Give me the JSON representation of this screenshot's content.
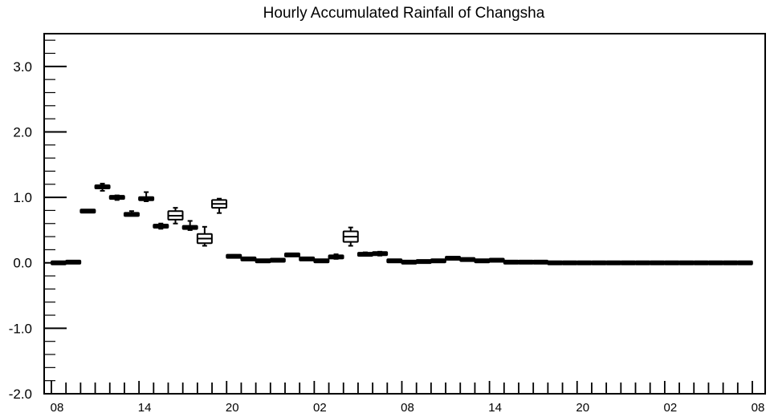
{
  "chart_data": {
    "type": "boxplot",
    "title": "Hourly Accumulated Rainfall of Changsha",
    "xlabel": "",
    "ylabel": "",
    "ylim": [
      -2.0,
      3.5
    ],
    "y_ticks": [
      "3.0",
      "2.0",
      "1.0",
      "0.0",
      "-1.0",
      "-2.0"
    ],
    "y_tick_values": [
      3.0,
      2.0,
      1.0,
      0.0,
      -1.0,
      -2.0
    ],
    "x_ticks": [
      "08",
      "14",
      "20",
      "02",
      "08",
      "14",
      "20",
      "02",
      "08"
    ],
    "x_tick_hours": [
      0,
      6,
      12,
      18,
      24,
      30,
      36,
      42,
      48
    ],
    "x_range": [
      0,
      48
    ],
    "grid": false,
    "box_fill_dark": "#000000",
    "box_fill_light": "#ffffff",
    "boxes": [
      {
        "hour": 0,
        "min": 0.0,
        "q1": 0.0,
        "median": 0.0,
        "q3": 0.0,
        "max": 0.0
      },
      {
        "hour": 1,
        "min": 0.01,
        "q1": 0.01,
        "median": 0.01,
        "q3": 0.01,
        "max": 0.01
      },
      {
        "hour": 2,
        "min": 0.78,
        "q1": 0.78,
        "median": 0.79,
        "q3": 0.8,
        "max": 0.8
      },
      {
        "hour": 3,
        "min": 1.1,
        "q1": 1.13,
        "median": 1.16,
        "q3": 1.18,
        "max": 1.21
      },
      {
        "hour": 4,
        "min": 0.96,
        "q1": 0.98,
        "median": 1.0,
        "q3": 1.02,
        "max": 1.03
      },
      {
        "hour": 5,
        "min": 0.72,
        "q1": 0.73,
        "median": 0.74,
        "q3": 0.75,
        "max": 0.79
      },
      {
        "hour": 6,
        "min": 0.94,
        "q1": 0.96,
        "median": 0.98,
        "q3": 1.0,
        "max": 1.08
      },
      {
        "hour": 7,
        "min": 0.52,
        "q1": 0.54,
        "median": 0.56,
        "q3": 0.58,
        "max": 0.6
      },
      {
        "hour": 8,
        "min": 0.6,
        "q1": 0.66,
        "median": 0.72,
        "q3": 0.79,
        "max": 0.84
      },
      {
        "hour": 9,
        "min": 0.5,
        "q1": 0.52,
        "median": 0.54,
        "q3": 0.57,
        "max": 0.64
      },
      {
        "hour": 10,
        "min": 0.26,
        "q1": 0.3,
        "median": 0.37,
        "q3": 0.44,
        "max": 0.55
      },
      {
        "hour": 11,
        "min": 0.76,
        "q1": 0.84,
        "median": 0.9,
        "q3": 0.96,
        "max": 0.98
      },
      {
        "hour": 12,
        "min": 0.09,
        "q1": 0.09,
        "median": 0.1,
        "q3": 0.11,
        "max": 0.12
      },
      {
        "hour": 13,
        "min": 0.06,
        "q1": 0.06,
        "median": 0.06,
        "q3": 0.06,
        "max": 0.06
      },
      {
        "hour": 14,
        "min": 0.03,
        "q1": 0.03,
        "median": 0.03,
        "q3": 0.03,
        "max": 0.03
      },
      {
        "hour": 15,
        "min": 0.03,
        "q1": 0.03,
        "median": 0.04,
        "q3": 0.05,
        "max": 0.05
      },
      {
        "hour": 16,
        "min": 0.12,
        "q1": 0.12,
        "median": 0.12,
        "q3": 0.12,
        "max": 0.12
      },
      {
        "hour": 17,
        "min": 0.06,
        "q1": 0.06,
        "median": 0.06,
        "q3": 0.06,
        "max": 0.06
      },
      {
        "hour": 18,
        "min": 0.03,
        "q1": 0.03,
        "median": 0.03,
        "q3": 0.03,
        "max": 0.03
      },
      {
        "hour": 19,
        "min": 0.06,
        "q1": 0.07,
        "median": 0.09,
        "q3": 0.11,
        "max": 0.13
      },
      {
        "hour": 20,
        "min": 0.26,
        "q1": 0.32,
        "median": 0.4,
        "q3": 0.48,
        "max": 0.54
      },
      {
        "hour": 21,
        "min": 0.11,
        "q1": 0.12,
        "median": 0.13,
        "q3": 0.15,
        "max": 0.16
      },
      {
        "hour": 22,
        "min": 0.11,
        "q1": 0.12,
        "median": 0.14,
        "q3": 0.16,
        "max": 0.17
      },
      {
        "hour": 23,
        "min": 0.03,
        "q1": 0.03,
        "median": 0.03,
        "q3": 0.03,
        "max": 0.03
      },
      {
        "hour": 24,
        "min": 0.01,
        "q1": 0.01,
        "median": 0.01,
        "q3": 0.01,
        "max": 0.01
      },
      {
        "hour": 25,
        "min": 0.02,
        "q1": 0.02,
        "median": 0.02,
        "q3": 0.02,
        "max": 0.02
      },
      {
        "hour": 26,
        "min": 0.03,
        "q1": 0.03,
        "median": 0.03,
        "q3": 0.03,
        "max": 0.03
      },
      {
        "hour": 27,
        "min": 0.07,
        "q1": 0.07,
        "median": 0.07,
        "q3": 0.07,
        "max": 0.07
      },
      {
        "hour": 28,
        "min": 0.03,
        "q1": 0.04,
        "median": 0.05,
        "q3": 0.06,
        "max": 0.06
      },
      {
        "hour": 29,
        "min": 0.03,
        "q1": 0.03,
        "median": 0.03,
        "q3": 0.03,
        "max": 0.03
      },
      {
        "hour": 30,
        "min": 0.03,
        "q1": 0.04,
        "median": 0.04,
        "q3": 0.05,
        "max": 0.05
      },
      {
        "hour": 31,
        "min": 0.01,
        "q1": 0.01,
        "median": 0.01,
        "q3": 0.01,
        "max": 0.01
      },
      {
        "hour": 32,
        "min": 0.01,
        "q1": 0.01,
        "median": 0.01,
        "q3": 0.01,
        "max": 0.01
      },
      {
        "hour": 33,
        "min": 0.01,
        "q1": 0.01,
        "median": 0.01,
        "q3": 0.01,
        "max": 0.01
      },
      {
        "hour": 34,
        "min": 0.0,
        "q1": 0.0,
        "median": 0.0,
        "q3": 0.0,
        "max": 0.0
      },
      {
        "hour": 35,
        "min": 0.0,
        "q1": 0.0,
        "median": 0.0,
        "q3": 0.0,
        "max": 0.0
      },
      {
        "hour": 36,
        "min": 0.0,
        "q1": 0.0,
        "median": 0.0,
        "q3": 0.0,
        "max": 0.0
      },
      {
        "hour": 37,
        "min": 0.0,
        "q1": 0.0,
        "median": 0.0,
        "q3": 0.0,
        "max": 0.0
      },
      {
        "hour": 38,
        "min": 0.0,
        "q1": 0.0,
        "median": 0.0,
        "q3": 0.0,
        "max": 0.0
      },
      {
        "hour": 39,
        "min": 0.0,
        "q1": 0.0,
        "median": 0.0,
        "q3": 0.0,
        "max": 0.0
      },
      {
        "hour": 40,
        "min": 0.0,
        "q1": 0.0,
        "median": 0.0,
        "q3": 0.0,
        "max": 0.0
      },
      {
        "hour": 41,
        "min": 0.0,
        "q1": 0.0,
        "median": 0.0,
        "q3": 0.0,
        "max": 0.0
      },
      {
        "hour": 42,
        "min": 0.0,
        "q1": 0.0,
        "median": 0.0,
        "q3": 0.0,
        "max": 0.0
      },
      {
        "hour": 43,
        "min": 0.0,
        "q1": 0.0,
        "median": 0.0,
        "q3": 0.0,
        "max": 0.0
      },
      {
        "hour": 44,
        "min": 0.0,
        "q1": 0.0,
        "median": 0.0,
        "q3": 0.0,
        "max": 0.0
      },
      {
        "hour": 45,
        "min": 0.0,
        "q1": 0.0,
        "median": 0.0,
        "q3": 0.0,
        "max": 0.0
      },
      {
        "hour": 46,
        "min": 0.0,
        "q1": 0.0,
        "median": 0.0,
        "q3": 0.0,
        "max": 0.0
      },
      {
        "hour": 47,
        "min": 0.0,
        "q1": 0.0,
        "median": 0.0,
        "q3": 0.0,
        "max": 0.0
      }
    ]
  }
}
